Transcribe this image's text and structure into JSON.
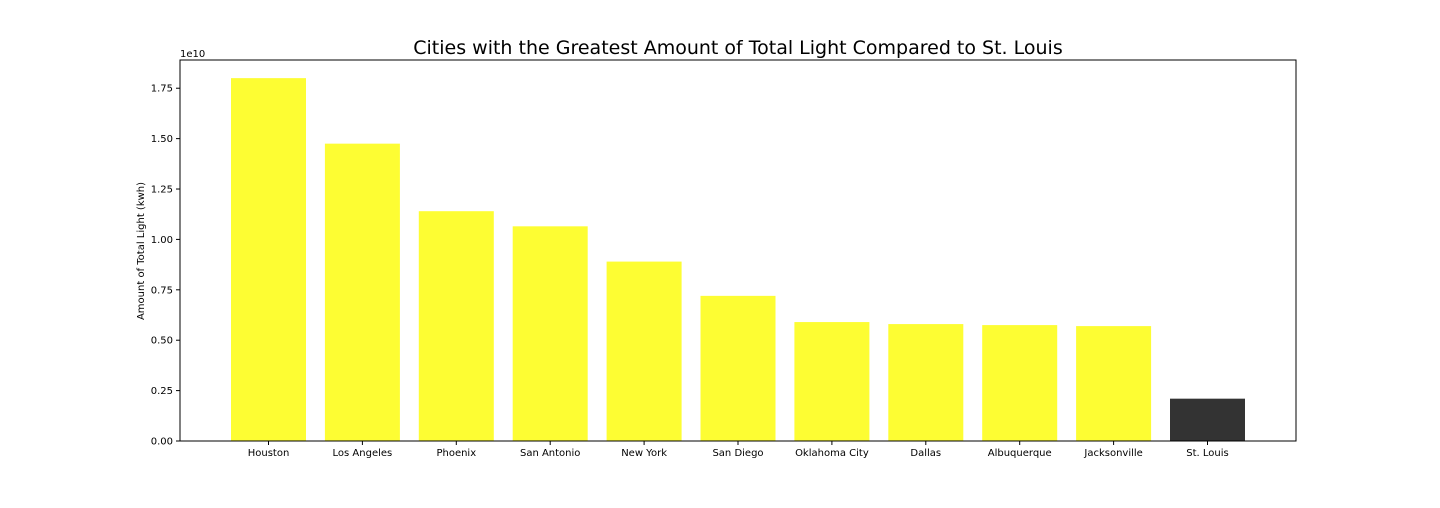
{
  "chart_data": {
    "type": "bar",
    "title": "Cities with the Greatest Amount of Total Light Compared to St. Louis",
    "xlabel": "",
    "ylabel": "Amount of Total Light (kwh)",
    "y_offset_label": "1e10",
    "y_scale": 10000000000,
    "ylim": [
      0,
      1.89
    ],
    "yticks": [
      0.0,
      0.25,
      0.5,
      0.75,
      1.0,
      1.25,
      1.5,
      1.75
    ],
    "ytick_labels": [
      "0.00",
      "0.25",
      "0.50",
      "0.75",
      "1.00",
      "1.25",
      "1.50",
      "1.75"
    ],
    "grid": false,
    "categories": [
      "Houston",
      "Los Angeles",
      "Phoenix",
      "San Antonio",
      "New York",
      "San Diego",
      "Oklahoma City",
      "Dallas",
      "Albuquerque",
      "Jacksonville",
      "St. Louis"
    ],
    "values": [
      1.8,
      1.475,
      1.14,
      1.065,
      0.89,
      0.72,
      0.59,
      0.58,
      0.575,
      0.57,
      0.21
    ],
    "colors": [
      "#fdfd33",
      "#fdfd33",
      "#fdfd33",
      "#fdfd33",
      "#fdfd33",
      "#fdfd33",
      "#fdfd33",
      "#fdfd33",
      "#fdfd33",
      "#fdfd33",
      "#333333"
    ]
  }
}
